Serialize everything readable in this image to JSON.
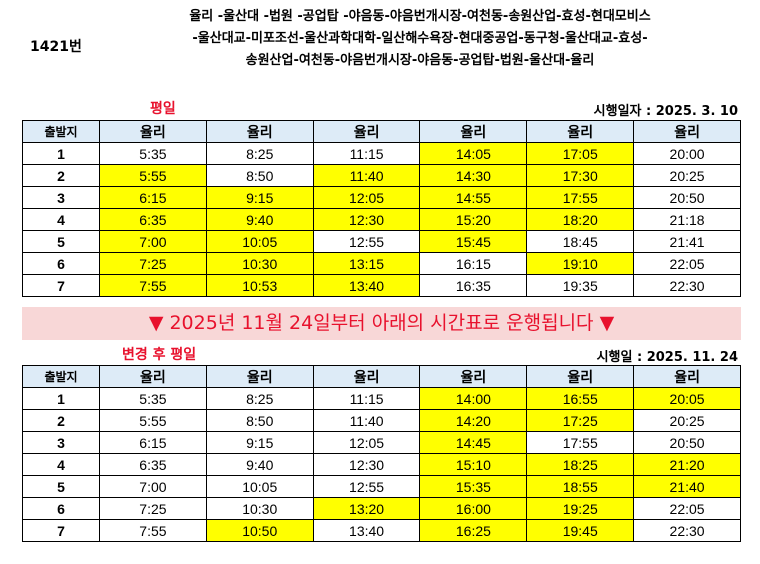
{
  "route_number": "1421번",
  "route_lines": [
    "율리 -울산대 -법원 -공업탑 -야음동-야음번개시장-여천동-송원산업-효성-현대모비스",
    "-울산대교-미포조선-울산과학대학-일산해수욕장-현대중공업-동구청-울산대교-효성-",
    "송원산업-여천동-야음번개시장-야음동-공업탑-법원-울산대-율리"
  ],
  "table1": {
    "label": "평일",
    "effective": "시행일자 : 2025. 3. 10",
    "corner": "출발지",
    "headers": [
      "율리",
      "율리",
      "율리",
      "율리",
      "율리",
      "율리"
    ],
    "rows": [
      {
        "n": "1",
        "t": [
          "5:35",
          "8:25",
          "11:15",
          "14:05",
          "17:05",
          "20:00"
        ]
      },
      {
        "n": "2",
        "t": [
          "5:55",
          "8:50",
          "11:40",
          "14:30",
          "17:30",
          "20:25"
        ]
      },
      {
        "n": "3",
        "t": [
          "6:15",
          "9:15",
          "12:05",
          "14:55",
          "17:55",
          "20:50"
        ]
      },
      {
        "n": "4",
        "t": [
          "6:35",
          "9:40",
          "12:30",
          "15:20",
          "18:20",
          "21:18"
        ]
      },
      {
        "n": "5",
        "t": [
          "7:00",
          "10:05",
          "12:55",
          "15:45",
          "18:45",
          "21:41"
        ]
      },
      {
        "n": "6",
        "t": [
          "7:25",
          "10:30",
          "13:15",
          "16:15",
          "19:10",
          "22:05"
        ]
      },
      {
        "n": "7",
        "t": [
          "7:55",
          "10:53",
          "13:40",
          "16:35",
          "19:35",
          "22:30"
        ]
      }
    ],
    "highlight": [
      [
        0,
        0,
        0,
        1,
        1,
        0
      ],
      [
        1,
        0,
        1,
        1,
        1,
        0
      ],
      [
        1,
        1,
        1,
        1,
        1,
        0
      ],
      [
        1,
        1,
        1,
        1,
        1,
        0
      ],
      [
        1,
        1,
        0,
        1,
        0,
        0
      ],
      [
        1,
        1,
        1,
        0,
        1,
        0
      ],
      [
        1,
        1,
        1,
        0,
        0,
        0
      ]
    ]
  },
  "banner": "▼ 2025년 11월 24일부터 아래의 시간표로 운행됩니다 ▼",
  "table2": {
    "label": "변경 후 평일",
    "effective": "시행일 : 2025. 11. 24",
    "corner": "출발지",
    "headers": [
      "율리",
      "율리",
      "율리",
      "율리",
      "율리",
      "율리"
    ],
    "rows": [
      {
        "n": "1",
        "t": [
          "5:35",
          "8:25",
          "11:15",
          "14:00",
          "16:55",
          "20:05"
        ]
      },
      {
        "n": "2",
        "t": [
          "5:55",
          "8:50",
          "11:40",
          "14:20",
          "17:25",
          "20:25"
        ]
      },
      {
        "n": "3",
        "t": [
          "6:15",
          "9:15",
          "12:05",
          "14:45",
          "17:55",
          "20:50"
        ]
      },
      {
        "n": "4",
        "t": [
          "6:35",
          "9:40",
          "12:30",
          "15:10",
          "18:25",
          "21:20"
        ]
      },
      {
        "n": "5",
        "t": [
          "7:00",
          "10:05",
          "12:55",
          "15:35",
          "18:55",
          "21:40"
        ]
      },
      {
        "n": "6",
        "t": [
          "7:25",
          "10:30",
          "13:20",
          "16:00",
          "19:25",
          "22:05"
        ]
      },
      {
        "n": "7",
        "t": [
          "7:55",
          "10:50",
          "13:40",
          "16:25",
          "19:45",
          "22:30"
        ]
      }
    ],
    "highlight": [
      [
        0,
        0,
        0,
        1,
        1,
        1
      ],
      [
        0,
        0,
        0,
        1,
        1,
        0
      ],
      [
        0,
        0,
        0,
        1,
        0,
        0
      ],
      [
        0,
        0,
        0,
        1,
        1,
        1
      ],
      [
        0,
        0,
        0,
        1,
        1,
        1
      ],
      [
        0,
        0,
        1,
        1,
        1,
        0
      ],
      [
        0,
        1,
        0,
        1,
        1,
        0
      ]
    ]
  },
  "colors": {
    "highlight": "#ffff00",
    "header_bg": "#ddebf7",
    "banner_bg": "#f8d7d7",
    "accent_red": "#e8112d"
  }
}
